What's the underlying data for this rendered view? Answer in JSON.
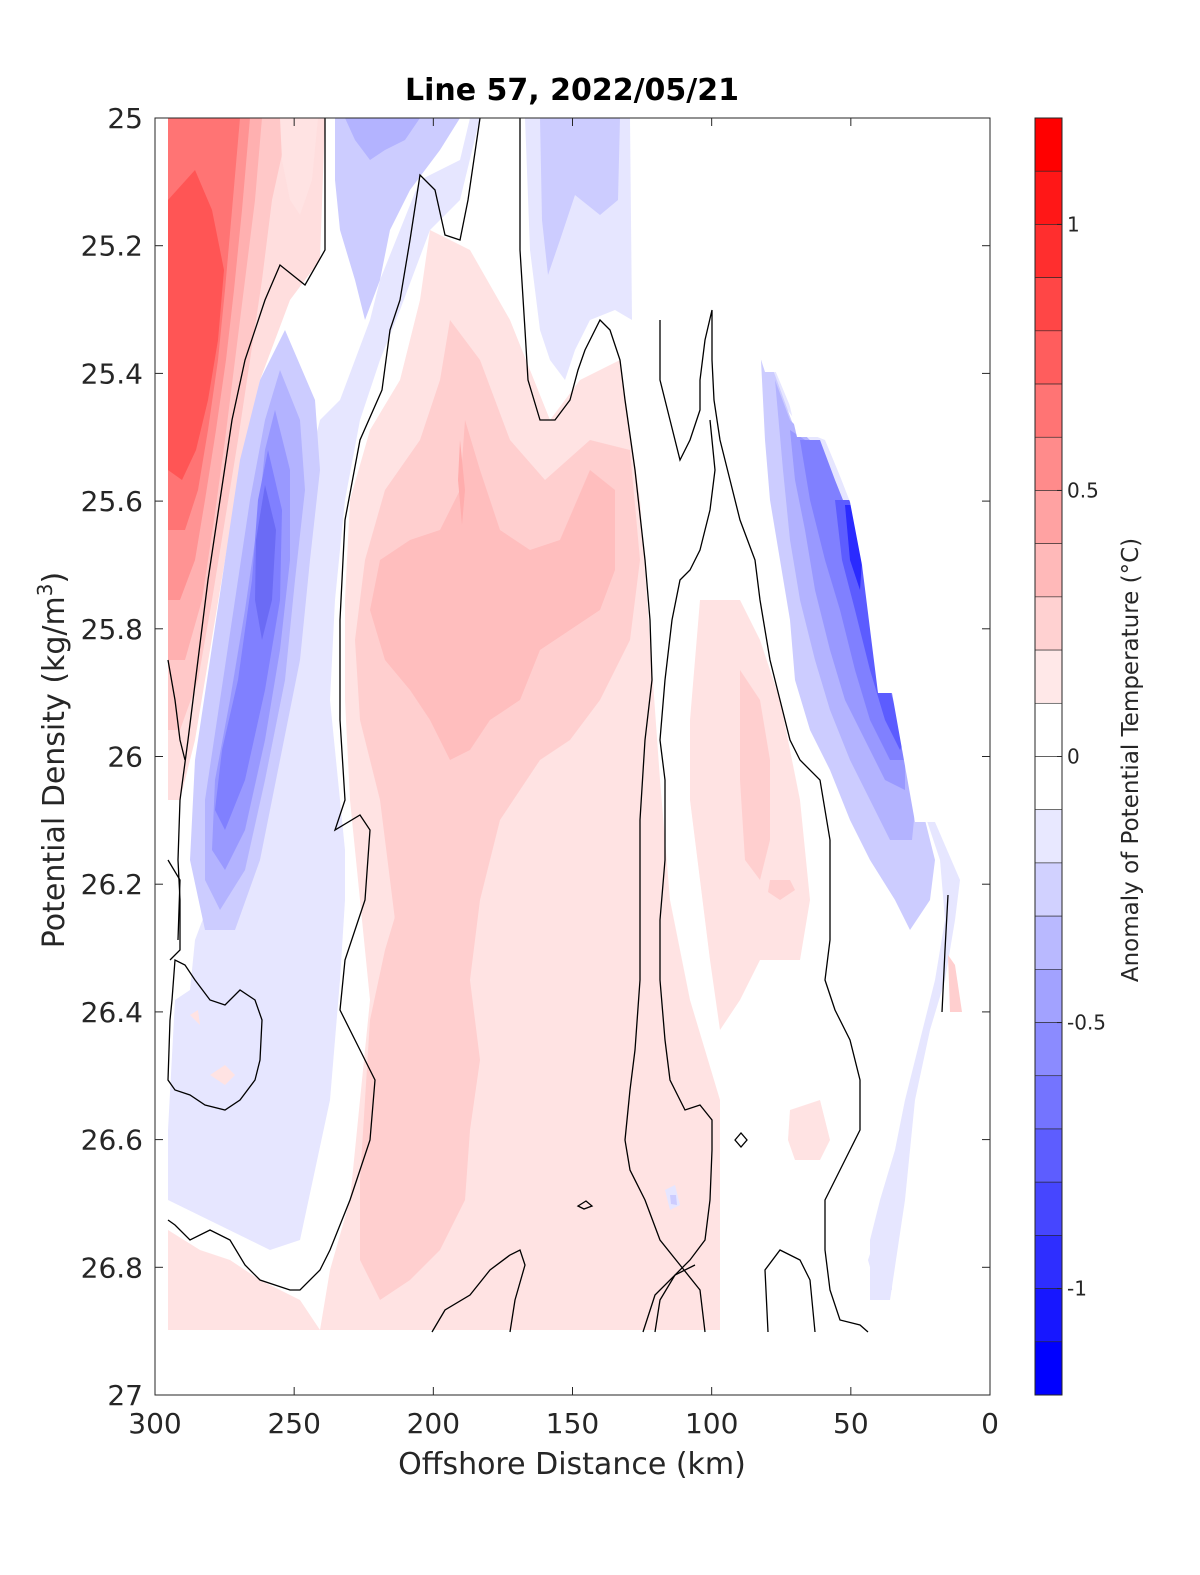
{
  "chart_data": {
    "type": "contour",
    "title": "Line 57, 2022/05/21",
    "xlabel": "Offshore Distance (km)",
    "ylabel_main": "Potential Density (kg/m",
    "ylabel_sup": "3",
    "ylabel_close": ")",
    "colorbar_label": "Anomaly of Potential Temperature (°C)",
    "xlim": [
      300,
      0
    ],
    "x_reversed": true,
    "ylim": [
      25,
      27
    ],
    "y_reversed": true,
    "xticks": [
      300,
      250,
      200,
      150,
      100,
      50,
      0
    ],
    "xtick_labels": [
      "300",
      "250",
      "200",
      "150",
      "100",
      "50",
      "0"
    ],
    "yticks": [
      25,
      25.2,
      25.4,
      25.6,
      25.8,
      26,
      26.2,
      26.4,
      26.6,
      26.8,
      27
    ],
    "ytick_labels": [
      "25",
      "25.2",
      "25.4",
      "25.6",
      "25.8",
      "26",
      "26.2",
      "26.4",
      "26.6",
      "26.8",
      "27"
    ],
    "colorbar_range": [
      -1.2,
      1.2
    ],
    "colorbar_levels": 24,
    "colorbar_ticks": [
      1,
      0.5,
      0,
      -0.5,
      -1
    ],
    "colorbar_tick_labels": [
      "1",
      "0.5",
      "0",
      "-0.5",
      "-1"
    ],
    "contour_line_level": 0,
    "features": [
      {
        "name": "warm core offshore",
        "x_range": [
          280,
          295
        ],
        "y_range": [
          25.0,
          25.8
        ],
        "value": 0.9
      },
      {
        "name": "cold eddy",
        "x_range": [
          255,
          275
        ],
        "y_range": [
          25.5,
          26.2
        ],
        "value": -0.6
      },
      {
        "name": "cold coastal band",
        "x_range": [
          40,
          80
        ],
        "y_range": [
          25.3,
          26.3
        ],
        "value": -0.9
      },
      {
        "name": "warm mid-section",
        "x_range": [
          150,
          215
        ],
        "y_range": [
          25.4,
          26.9
        ],
        "value": 0.3
      }
    ]
  },
  "colors": {
    "positive_max": "#ff0000",
    "zero": "#ffffff",
    "negative_max": "#0000ff",
    "contour_line": "#000000",
    "axis": "#262626"
  }
}
